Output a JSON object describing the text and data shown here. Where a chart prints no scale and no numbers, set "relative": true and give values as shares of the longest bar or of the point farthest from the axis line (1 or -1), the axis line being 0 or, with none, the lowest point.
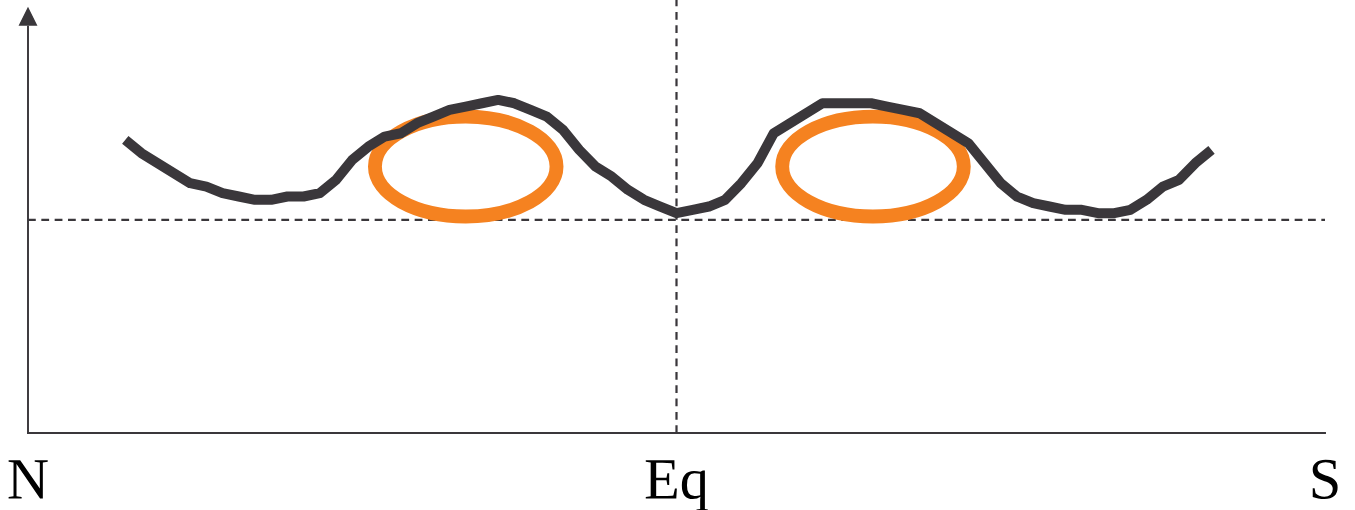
{
  "chart_data": {
    "type": "line",
    "relative": true,
    "categories": [
      "N",
      null,
      null,
      null,
      null,
      null,
      null,
      null,
      null,
      null,
      null,
      null,
      null,
      null,
      null,
      null,
      null,
      null,
      null,
      null,
      null,
      null,
      null,
      null,
      null,
      null,
      null,
      null,
      null,
      null,
      null,
      null,
      null,
      null,
      null,
      null,
      null,
      null,
      null,
      null,
      "Eq",
      null,
      null,
      null,
      null,
      null,
      null,
      null,
      null,
      null,
      null,
      null,
      null,
      null,
      null,
      null,
      null,
      null,
      null,
      null,
      null,
      null,
      null,
      null,
      null,
      null,
      null,
      null,
      null,
      null,
      null,
      null,
      null,
      null,
      null,
      null,
      null,
      null,
      null,
      null,
      "S"
    ],
    "tick_labels": "x",
    "grid": false,
    "legend": false,
    "marker": "none",
    "line_style": "solid",
    "series": [
      {
        "color": "#3a373b",
        "values": [
          null,
          null,
          null,
          null,
          null,
          null,
          0.88,
          0.84,
          0.81,
          0.78,
          0.75,
          0.74,
          0.72,
          0.71,
          0.7,
          0.7,
          0.71,
          0.71,
          0.72,
          0.76,
          0.82,
          0.86,
          0.89,
          0.9,
          0.93,
          0.95,
          0.97,
          0.98,
          0.99,
          1.0,
          0.99,
          0.97,
          0.95,
          0.91,
          0.85,
          0.8,
          0.77,
          0.73,
          0.7,
          0.68,
          0.66,
          0.67,
          0.68,
          0.7,
          0.75,
          0.81,
          0.9,
          0.93,
          0.96,
          0.99,
          0.99,
          0.99,
          0.99,
          0.98,
          0.97,
          0.96,
          0.93,
          0.9,
          0.87,
          0.81,
          0.75,
          0.71,
          0.69,
          0.68,
          0.67,
          0.67,
          0.66,
          0.66,
          0.67,
          0.7,
          0.74,
          0.76,
          0.81,
          0.85,
          null,
          null,
          null,
          null,
          null,
          null,
          null
        ]
      }
    ],
    "ref_lines": [
      {
        "axis": "x",
        "value": "Eq",
        "line_style": "dashed",
        "color": "#3a373b"
      },
      {
        "axis": "y",
        "value": 0.64,
        "line_style": "dashed",
        "color": "#3a373b"
      }
    ]
  }
}
